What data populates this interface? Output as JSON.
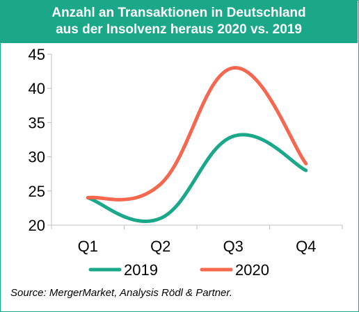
{
  "chart_data": {
    "type": "line",
    "title_lines": [
      "Anzahl an Transaktionen in Deutschland",
      "aus der Insolvenz heraus 2020 vs. 2019"
    ],
    "categories": [
      "Q1",
      "Q2",
      "Q3",
      "Q4"
    ],
    "series": [
      {
        "name": "2019",
        "values": [
          24,
          21,
          33,
          28
        ],
        "color": "#1aa889"
      },
      {
        "name": "2020",
        "values": [
          24,
          26,
          43,
          29
        ],
        "color": "#f5674f"
      }
    ],
    "ylim": [
      20,
      45
    ],
    "yticks": [
      20,
      25,
      30,
      35,
      40,
      45
    ],
    "grid": false,
    "smooth": true,
    "legend_position": "bottom"
  },
  "source": "Source: MergerMarket, Analysis Rödl & Partner."
}
